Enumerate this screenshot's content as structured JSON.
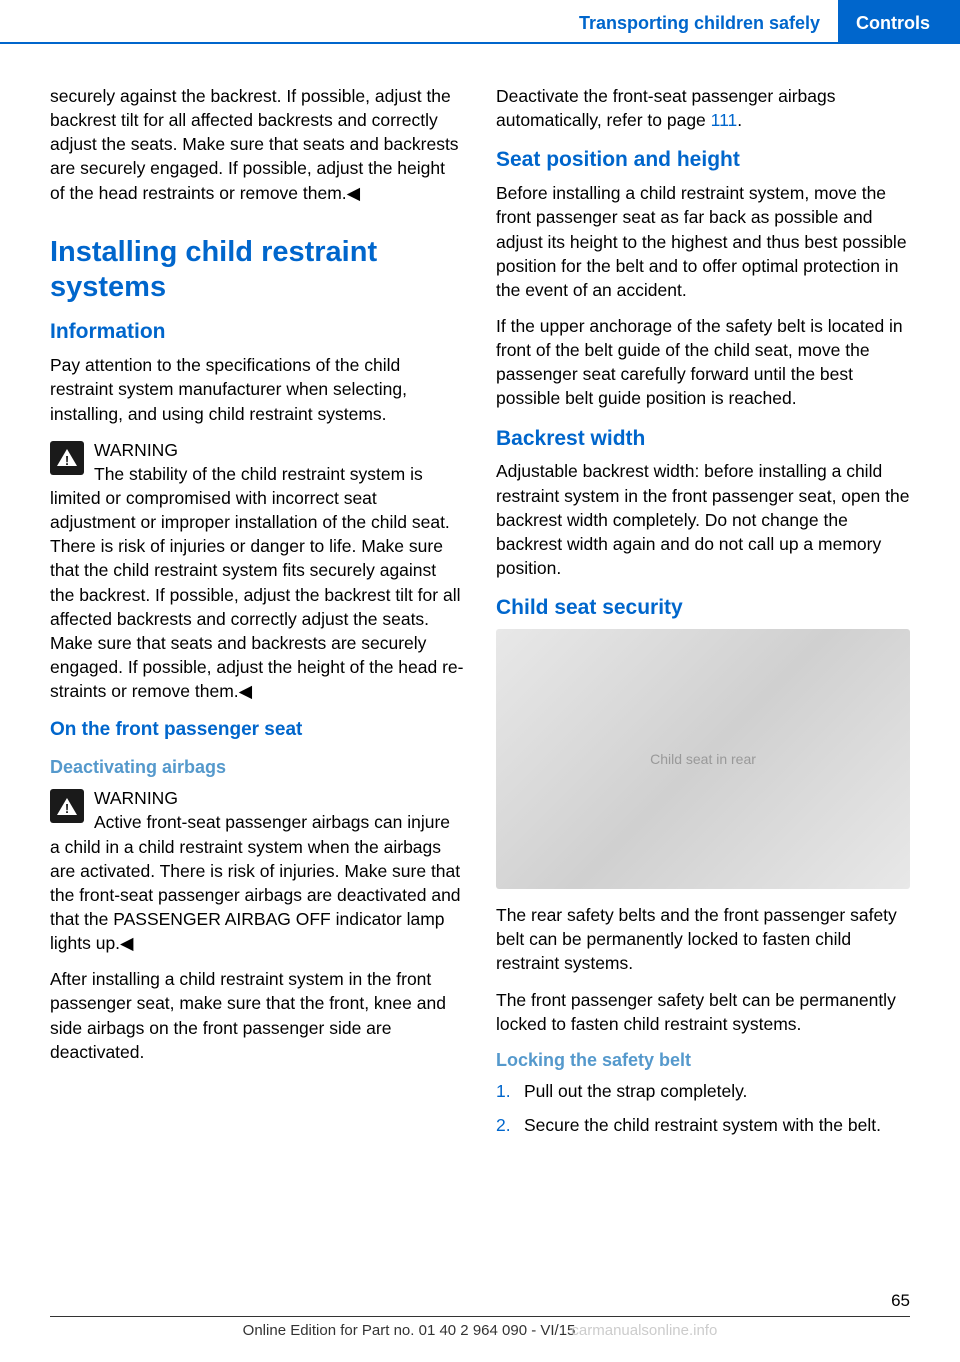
{
  "header": {
    "section": "Transporting children safely",
    "chapter": "Controls"
  },
  "left_column": {
    "intro_continuation": "securely against the backrest. If possible, ad­just the backrest tilt for all affected backrests and correctly adjust the seats. Make sure that seats and backrests are securely engaged. If possible, adjust the height of the head re­straints or remove them.◀",
    "h1": "Installing child restraint systems",
    "info_heading": "Information",
    "info_p1": "Pay attention to the specifications of the child restraint system manufacturer when selecting, installing, and using child restraint systems.",
    "warning1_label": "WARNING",
    "warning1_text": "The stability of the child restraint system is limited or compromised with incorrect seat adjustment or improper installation of the child seat. There is risk of injuries or danger to life. Make sure that the child restraint system fits securely against the backrest. If possible, ad­just the backrest tilt for all affected backrests and correctly adjust the seats. Make sure that seats and backrests are securely engaged. If possible, adjust the height of the head re­straints or remove them.◀",
    "front_seat_heading": "On the front passenger seat",
    "deact_heading": "Deactivating airbags",
    "warning2_label": "WARNING",
    "warning2_text": "Active front-seat passenger airbags can injure a child in a child restraint system when the airbags are activated. There is risk of inju­ries. Make sure that the front-seat passenger airbags are deactivated and that the PASSEN­GER AIRBAG OFF indicator lamp lights up.◀",
    "after_install": "After installing a child restraint system in the front passenger seat, make sure that the front, knee and side airbags on the front passenger side are deactivated."
  },
  "right_column": {
    "deactivate_text": "Deactivate the front-seat passenger airbags automatically, refer to page ",
    "deactivate_link": "111",
    "deactivate_suffix": ".",
    "seat_pos_heading": "Seat position and height",
    "seat_pos_p1": "Before installing a child restraint system, move the front passenger seat as far back as possi­ble and adjust its height to the highest and thus best possible position for the belt and to offer optimal protection in the event of an acci­dent.",
    "seat_pos_p2": "If the upper anchorage of the safety belt is lo­cated in front of the belt guide of the child seat, move the passenger seat carefully forward un­til the best possible belt guide position is reached.",
    "backrest_heading": "Backrest width",
    "backrest_text": "Adjustable backrest width: before installing a child restraint system in the front passenger seat, open the backrest width completely. Do not change the backrest width again and do not call up a memory position.",
    "child_seat_heading": "Child seat security",
    "image_alt": "Child seat in rear",
    "rear_belts_p1": "The rear safety belts and the front passenger safety belt can be permanently locked to fas­ten child restraint systems.",
    "rear_belts_p2": "The front passenger safety belt can be perma­nently locked to fasten child restraint systems.",
    "locking_heading": "Locking the safety belt",
    "step1": "Pull out the strap completely.",
    "step2": "Secure the child restraint system with the belt."
  },
  "footer": {
    "page_number": "65",
    "edition": "Online Edition for Part no. 01 40 2 964 090 - VI/15",
    "watermark": "carmanualsonline.info"
  }
}
